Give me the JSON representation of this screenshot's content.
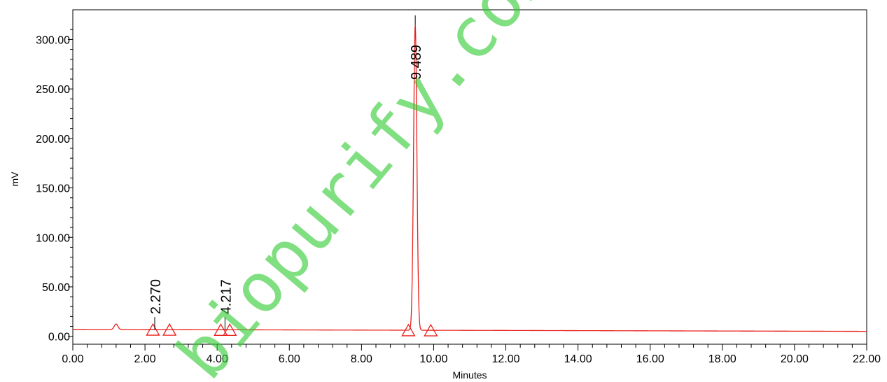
{
  "chart_data": {
    "type": "line",
    "xlabel": "Minutes",
    "ylabel": "mV",
    "xlim": [
      0,
      22
    ],
    "ylim": [
      -8,
      330
    ],
    "x_ticks": [
      "0.00",
      "2.00",
      "4.00",
      "6.00",
      "8.00",
      "10.00",
      "12.00",
      "14.00",
      "16.00",
      "18.00",
      "20.00",
      "22.00"
    ],
    "y_ticks": [
      "0.00",
      "50.00",
      "100.00",
      "150.00",
      "200.00",
      "250.00",
      "300.00"
    ],
    "grid": false,
    "line_color": "#e8201c",
    "baseline": {
      "start": 7.0,
      "end": 5.0
    },
    "bumps": [
      {
        "center": 1.2,
        "height": 5.5,
        "width": 0.05
      }
    ],
    "peaks": [
      {
        "label": "2.270",
        "rt": 2.27,
        "height": 0.0,
        "width": 0.05
      },
      {
        "label": "4.217",
        "rt": 4.217,
        "height": 0.0,
        "width": 0.05
      },
      {
        "label": "9.489",
        "rt": 9.489,
        "height": 308.0,
        "width": 0.045
      }
    ],
    "integration_markers": [
      2.22,
      2.68,
      4.1,
      4.35,
      9.3,
      9.92
    ]
  },
  "watermark": "biopurify.com"
}
